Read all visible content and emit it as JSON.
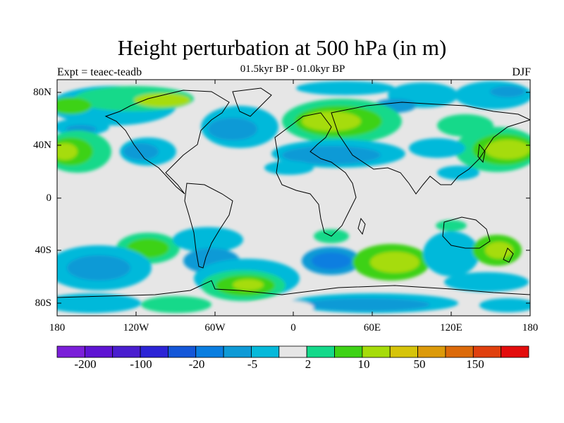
{
  "header": {
    "title": "Height perturbation at 500 hPa (in m)",
    "subtitle": "01.5kyr BP - 01.0kyr BP",
    "left_label": "Expt = teaec-teadb",
    "right_label": "DJF"
  },
  "map": {
    "lat_ticks": [
      "80N",
      "40N",
      "0",
      "40S",
      "80S"
    ],
    "lon_ticks": [
      "180",
      "120W",
      "60W",
      "0",
      "60E",
      "120E",
      "180"
    ]
  },
  "colorbar": {
    "colors": [
      "#7b1fd9",
      "#5f14d3",
      "#4a1ecf",
      "#2c24d6",
      "#1457d8",
      "#0a7ee0",
      "#0e9ad6",
      "#06b9da",
      "#e6e6e6",
      "#14d98a",
      "#3ed216",
      "#a6dc0a",
      "#d6c40a",
      "#dc9a0a",
      "#dc6a0a",
      "#e0400e",
      "#e30d0d"
    ],
    "labels": [
      "-200",
      "-100",
      "-20",
      "-5",
      "2",
      "10",
      "50",
      "150"
    ]
  }
}
